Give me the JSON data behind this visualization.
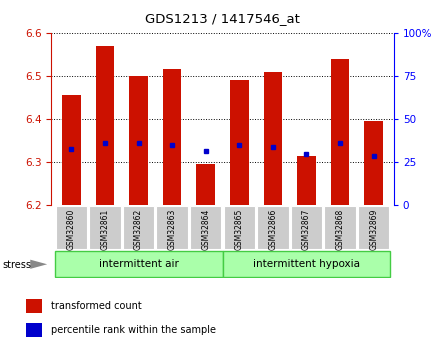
{
  "title": "GDS1213 / 1417546_at",
  "samples": [
    "GSM32860",
    "GSM32861",
    "GSM32862",
    "GSM32863",
    "GSM32864",
    "GSM32865",
    "GSM32866",
    "GSM32867",
    "GSM32868",
    "GSM32869"
  ],
  "transformed_counts": [
    6.455,
    6.57,
    6.5,
    6.515,
    6.295,
    6.49,
    6.51,
    6.315,
    6.54,
    6.395
  ],
  "percentile_ranks": [
    6.33,
    6.345,
    6.345,
    6.34,
    6.325,
    6.34,
    6.335,
    6.32,
    6.345,
    6.315
  ],
  "y_min": 6.2,
  "y_max": 6.6,
  "y_ticks": [
    6.2,
    6.3,
    6.4,
    6.5,
    6.6
  ],
  "right_y_ticks": [
    0,
    25,
    50,
    75,
    100
  ],
  "right_y_labels": [
    "0",
    "25",
    "50",
    "75",
    "100%"
  ],
  "bar_color": "#cc1100",
  "dot_color": "#0000cc",
  "bar_width": 0.55,
  "group1_label": "intermittent air",
  "group2_label": "intermittent hypoxia",
  "group1_indices": [
    0,
    1,
    2,
    3,
    4
  ],
  "group2_indices": [
    5,
    6,
    7,
    8,
    9
  ],
  "group_bg_color": "#aaffaa",
  "group_border_color": "#44cc44",
  "stress_label": "stress",
  "legend_bar_label": "transformed count",
  "legend_dot_label": "percentile rank within the sample",
  "tick_bg_color": "#cccccc",
  "plot_bg_color": "#ffffff",
  "grid_color": "#000000"
}
